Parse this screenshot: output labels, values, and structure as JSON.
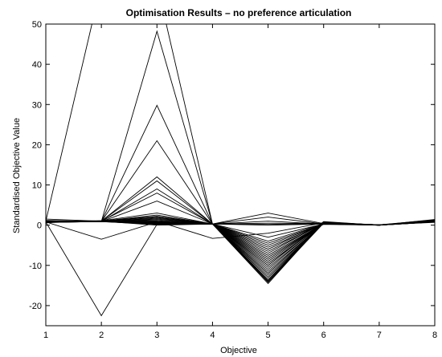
{
  "chart_data": {
    "type": "line",
    "title": "Optimisation Results – no preference articulation",
    "xlabel": "Objective",
    "ylabel": "Standardised Objective Value",
    "xlim": [
      1,
      8
    ],
    "ylim": [
      -25,
      50
    ],
    "xticks": [
      1,
      2,
      3,
      4,
      5,
      6,
      7,
      8
    ],
    "yticks": [
      -20,
      -10,
      0,
      10,
      20,
      30,
      40,
      50
    ],
    "grid": false,
    "legend": "none",
    "line_color": "#000000",
    "series": [
      {
        "values": [
          0.8,
          0.9,
          48.2,
          0.3,
          0.5,
          0.4,
          0.1,
          0.9
        ]
      },
      {
        "values": [
          0.8,
          0.9,
          29.8,
          0.3,
          0.2,
          0.4,
          0.0,
          1.0
        ]
      },
      {
        "values": [
          0.8,
          0.9,
          21.0,
          0.3,
          0.0,
          0.3,
          0.1,
          0.8
        ]
      },
      {
        "values": [
          0.9,
          1.0,
          12.0,
          0.3,
          -3.0,
          0.3,
          0.0,
          0.8
        ]
      },
      {
        "values": [
          0.9,
          1.0,
          11.0,
          0.3,
          -4.5,
          0.3,
          0.0,
          0.9
        ]
      },
      {
        "values": [
          0.7,
          0.9,
          9.0,
          0.3,
          -5.5,
          0.2,
          0.0,
          0.8
        ]
      },
      {
        "values": [
          1.0,
          1.0,
          8.0,
          0.3,
          -6.5,
          0.4,
          0.1,
          0.9
        ]
      },
      {
        "values": [
          0.8,
          0.9,
          6.0,
          0.3,
          -7.5,
          0.4,
          0.0,
          0.8
        ]
      },
      {
        "values": [
          0.6,
          1.1,
          3.0,
          0.3,
          -8.5,
          0.5,
          0.1,
          0.7
        ]
      },
      {
        "values": [
          0.8,
          1.0,
          2.5,
          0.3,
          -9.5,
          0.4,
          0.0,
          0.9
        ]
      },
      {
        "values": [
          1.0,
          1.0,
          2.0,
          0.3,
          -10.5,
          0.5,
          0.1,
          1.0
        ]
      },
      {
        "values": [
          0.8,
          0.9,
          1.6,
          0.3,
          -11.5,
          0.5,
          0.0,
          0.9
        ]
      },
      {
        "values": [
          0.9,
          1.0,
          1.2,
          0.3,
          -12.0,
          0.6,
          0.1,
          0.8
        ]
      },
      {
        "values": [
          0.7,
          0.9,
          0.9,
          0.3,
          -12.5,
          0.5,
          0.0,
          0.9
        ]
      },
      {
        "values": [
          1.0,
          1.0,
          0.6,
          0.3,
          -13.0,
          0.6,
          0.1,
          1.0
        ]
      },
      {
        "values": [
          0.8,
          0.9,
          0.4,
          0.3,
          -13.5,
          0.7,
          0.0,
          0.9
        ]
      },
      {
        "values": [
          0.9,
          1.1,
          0.2,
          0.3,
          -14.0,
          0.6,
          0.1,
          0.8
        ]
      },
      {
        "values": [
          0.8,
          1.0,
          0.0,
          0.3,
          -14.5,
          0.8,
          0.0,
          1.1
        ]
      },
      {
        "values": [
          0.7,
          0.9,
          0.5,
          0.3,
          -11.0,
          0.7,
          0.1,
          0.9
        ]
      },
      {
        "values": [
          1.1,
          1.0,
          1.0,
          0.3,
          -10.0,
          0.9,
          0.0,
          1.2
        ]
      },
      {
        "values": [
          0.8,
          1.0,
          0.8,
          0.3,
          -9.0,
          0.5,
          0.1,
          0.9
        ]
      },
      {
        "values": [
          0.9,
          0.9,
          1.4,
          0.3,
          -8.0,
          0.4,
          0.0,
          0.8
        ]
      },
      {
        "values": [
          0.8,
          1.0,
          0.3,
          0.3,
          -7.0,
          0.6,
          0.1,
          1.0
        ]
      },
      {
        "values": [
          1.0,
          1.1,
          0.7,
          0.3,
          -6.0,
          0.5,
          0.0,
          0.9
        ]
      },
      {
        "values": [
          0.8,
          0.9,
          1.8,
          0.3,
          -5.0,
          0.3,
          0.1,
          0.8
        ]
      },
      {
        "values": [
          0.9,
          1.0,
          2.2,
          0.3,
          -4.0,
          0.4,
          0.0,
          1.0
        ]
      },
      {
        "values": [
          0.8,
          1.0,
          0.5,
          0.3,
          1.0,
          0.3,
          0.1,
          0.9
        ]
      },
      {
        "values": [
          0.7,
          0.9,
          0.3,
          0.3,
          2.0,
          0.3,
          0.0,
          0.8
        ]
      },
      {
        "values": [
          0.9,
          1.0,
          0.6,
          0.3,
          3.0,
          0.4,
          0.1,
          0.9
        ]
      },
      {
        "values": [
          0.8,
          -22.5,
          0.2,
          0.3,
          -13.0,
          0.5,
          0.0,
          1.0
        ]
      },
      {
        "values": [
          0.8,
          -3.5,
          0.8,
          0.3,
          -12.0,
          0.6,
          0.1,
          0.9
        ]
      },
      {
        "values": [
          1.0,
          60.0,
          60.0,
          0.3,
          -10.0,
          0.7,
          0.0,
          1.0
        ]
      },
      {
        "values": [
          0.8,
          1.0,
          1.0,
          -3.3,
          -2.0,
          0.6,
          0.0,
          0.9
        ]
      },
      {
        "values": [
          1.2,
          0.9,
          0.2,
          0.3,
          -14.2,
          0.5,
          0.1,
          1.3
        ]
      },
      {
        "values": [
          1.5,
          1.0,
          0.4,
          0.3,
          -13.8,
          0.8,
          0.0,
          1.4
        ]
      }
    ]
  }
}
